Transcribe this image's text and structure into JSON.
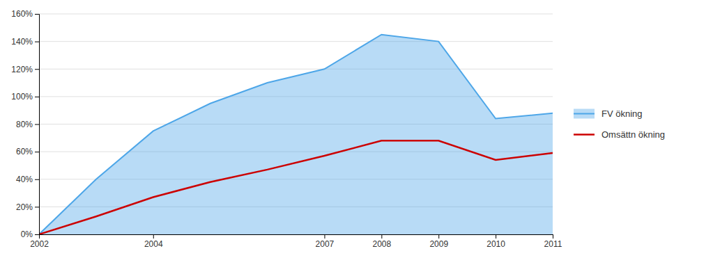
{
  "chart_data": {
    "type": "line",
    "x": [
      2002,
      2003,
      2004,
      2005,
      2006,
      2007,
      2008,
      2009,
      2010,
      2011
    ],
    "series": [
      {
        "name": "FV ökning",
        "type": "area",
        "color": "#4da6e8",
        "values": [
          0.0,
          0.4,
          0.75,
          0.95,
          1.1,
          1.2,
          1.45,
          1.4,
          0.84,
          0.88
        ]
      },
      {
        "name": "Omsättn ökning",
        "type": "line",
        "color": "#cc0000",
        "values": [
          0.0,
          0.13,
          0.27,
          0.38,
          0.47,
          0.57,
          0.68,
          0.68,
          0.54,
          0.59
        ]
      }
    ],
    "xlim": [
      2002,
      2011
    ],
    "xticks": [
      2002,
      2004,
      2007,
      2008,
      2009,
      2010,
      2011
    ],
    "ylim": [
      0,
      1.6
    ],
    "yticks": [
      {
        "value": 0.0,
        "label": "0%"
      },
      {
        "value": 0.2,
        "label": "20%"
      },
      {
        "value": 0.4,
        "label": "40%"
      },
      {
        "value": 0.6,
        "label": "60%"
      },
      {
        "value": 0.8,
        "label": "80%"
      },
      {
        "value": 1.0,
        "label": "100%"
      },
      {
        "value": 1.2,
        "label": "120%"
      },
      {
        "value": 1.4,
        "label": "140%"
      },
      {
        "value": 1.6,
        "label": "160%"
      }
    ],
    "grid": true,
    "legend": "right"
  }
}
